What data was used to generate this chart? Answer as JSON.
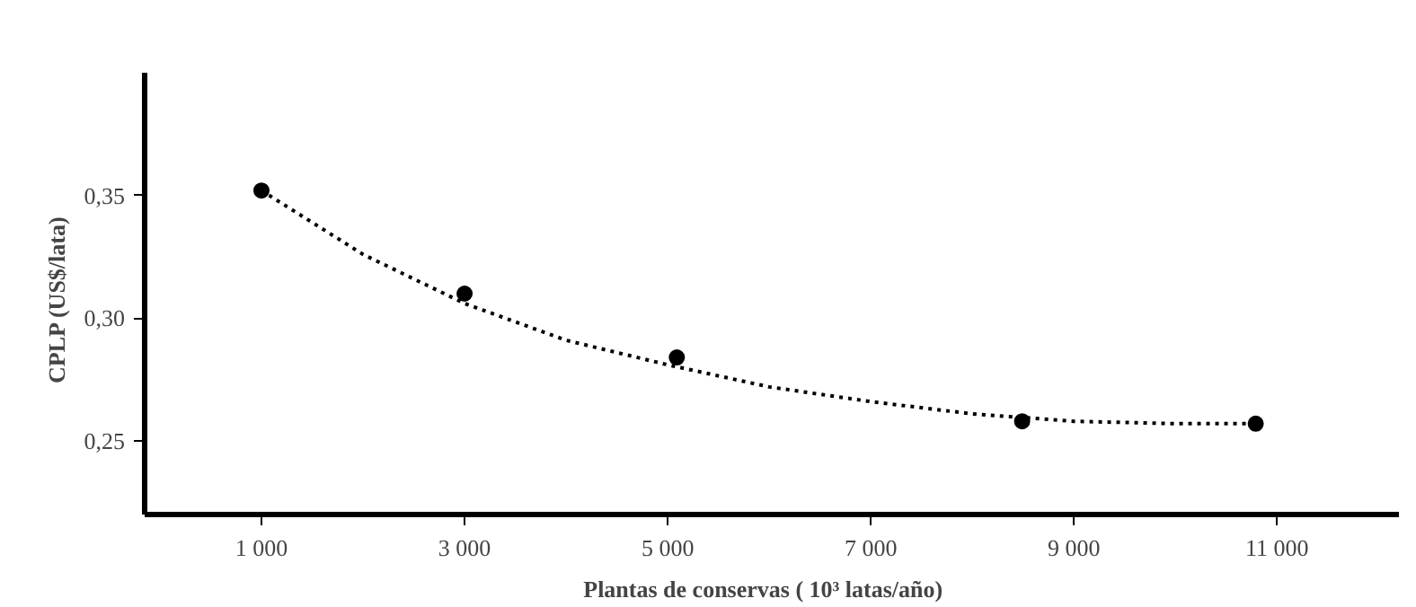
{
  "chart_data": {
    "type": "scatter",
    "xlabel": "Plantas de conservas   ( 10³  latas/año)",
    "ylabel": "CPLP   (US$/lata)",
    "series": [
      {
        "color": "#000000",
        "x": [
          1000,
          3000,
          5090,
          8490,
          10790
        ],
        "values": [
          0.352,
          0.31,
          0.284,
          0.258,
          0.257
        ],
        "marker": "circle"
      },
      {
        "type": "line",
        "color": "#000000",
        "line_style": "dotted",
        "marker": "none",
        "x": [
          1000,
          2000,
          3000,
          4000,
          5000,
          6000,
          7000,
          8000,
          9000,
          10000,
          10800
        ],
        "values": [
          0.352,
          0.326,
          0.306,
          0.291,
          0.281,
          0.272,
          0.266,
          0.261,
          0.258,
          0.257,
          0.257
        ]
      }
    ],
    "xlim": [
      -150,
      12200
    ],
    "ylim": [
      0.22,
      0.4
    ],
    "xticks": [
      {
        "value": 1000,
        "label": "1 000"
      },
      {
        "value": 3000,
        "label": "3 000"
      },
      {
        "value": 5000,
        "label": "5 000"
      },
      {
        "value": 7000,
        "label": "7 000"
      },
      {
        "value": 9000,
        "label": "9 000"
      },
      {
        "value": 11000,
        "label": "11 000"
      }
    ],
    "yticks": [
      {
        "value": 0.25,
        "label": "0,25"
      },
      {
        "value": 0.3,
        "label": "0,30"
      },
      {
        "value": 0.35,
        "label": "0,35"
      }
    ],
    "grid": false
  }
}
